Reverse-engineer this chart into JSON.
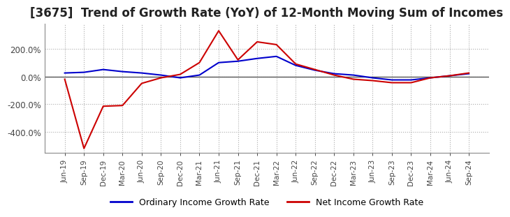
{
  "title": "[3675]  Trend of Growth Rate (YoY) of 12-Month Moving Sum of Incomes",
  "title_fontsize": 12,
  "background_color": "#ffffff",
  "grid_color": "#aaaaaa",
  "ordinary_color": "#0000cc",
  "net_color": "#cc0000",
  "legend_labels": [
    "Ordinary Income Growth Rate",
    "Net Income Growth Rate"
  ],
  "xlabels": [
    "Jun-19",
    "Sep-19",
    "Dec-19",
    "Mar-20",
    "Jun-20",
    "Sep-20",
    "Dec-20",
    "Mar-21",
    "Jun-21",
    "Sep-21",
    "Dec-21",
    "Mar-22",
    "Jun-22",
    "Sep-22",
    "Dec-22",
    "Mar-23",
    "Jun-23",
    "Sep-23",
    "Dec-23",
    "Mar-24",
    "Jun-24",
    "Sep-24"
  ],
  "ordinary_values": [
    25,
    30,
    50,
    35,
    25,
    10,
    -10,
    10,
    100,
    110,
    130,
    145,
    80,
    45,
    20,
    10,
    -10,
    -25,
    -25,
    -10,
    5,
    20
  ],
  "net_values": [
    -20,
    -520,
    -215,
    -210,
    -50,
    -10,
    15,
    100,
    330,
    120,
    250,
    230,
    90,
    50,
    10,
    -20,
    -30,
    -45,
    -45,
    -10,
    5,
    25
  ],
  "ylim": [
    -550,
    380
  ],
  "yticks": [
    -400,
    -200,
    0,
    200
  ],
  "zero_line_color": "#555555"
}
